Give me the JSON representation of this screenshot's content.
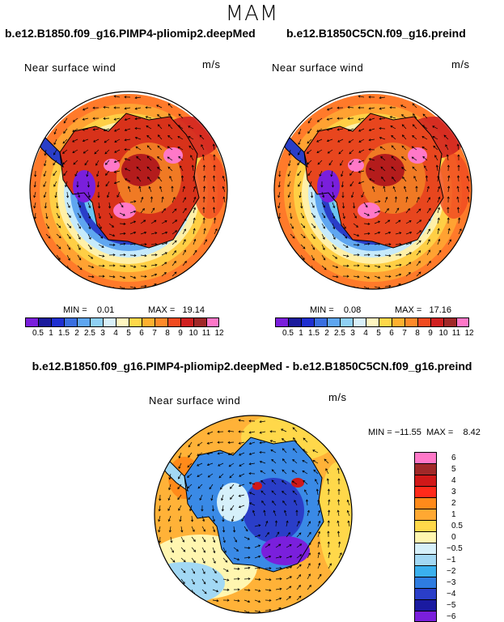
{
  "season": "MAM",
  "panels": [
    {
      "id": "pliomip",
      "title": "b.e12.B1850.f09_g16.PIMP4-pliomip2.deepMed",
      "variable": "Near surface wind",
      "units": "m/s",
      "min_text": "MIN =    0.01",
      "max_text": "MAX =   19.14"
    },
    {
      "id": "preind",
      "title": "b.e12.B1850C5CN.f09_g16.preind",
      "variable": "Near surface wind",
      "units": "m/s",
      "min_text": "MIN =    0.08",
      "max_text": "MAX =   17.16"
    }
  ],
  "abs_colorbar": {
    "colors": [
      "#7a1fdc",
      "#1a1a9c",
      "#1f2fd0",
      "#3a6fe0",
      "#5fa6f0",
      "#8fd0f5",
      "#d8f0fa",
      "#fff6c0",
      "#ffd84a",
      "#ffb030",
      "#ff8a2a",
      "#f04a20",
      "#d02020",
      "#a02828",
      "#ff78c8"
    ],
    "labels": [
      "0.5",
      "1",
      "1.5",
      "2",
      "2.5",
      "3",
      "4",
      "5",
      "6",
      "7",
      "8",
      "9",
      "10",
      "11",
      "12"
    ]
  },
  "difference": {
    "title": "b.e12.B1850.f09_g16.PIMP4-pliomip2.deepMed - b.e12.B1850C5CN.f09_g16.preind",
    "variable": "Near surface wind",
    "units": "m/s",
    "minmax_text": "MIN = −11.55  MAX =    8.42",
    "colors": [
      "#ff78c8",
      "#a02828",
      "#d01818",
      "#ff2a1a",
      "#ff8a1a",
      "#ffa832",
      "#ffd84a",
      "#fff6b0",
      "#d6f0fa",
      "#a2d8f4",
      "#3ab0ee",
      "#2e7ce0",
      "#2a3ec8",
      "#1a1aa0",
      "#7a1fdc"
    ],
    "labels": [
      "6",
      "5",
      "4",
      "3",
      "2",
      "1",
      "0.5",
      "0",
      "−0.5",
      "−1",
      "−2",
      "−3",
      "−4",
      "−5",
      "−6"
    ]
  }
}
